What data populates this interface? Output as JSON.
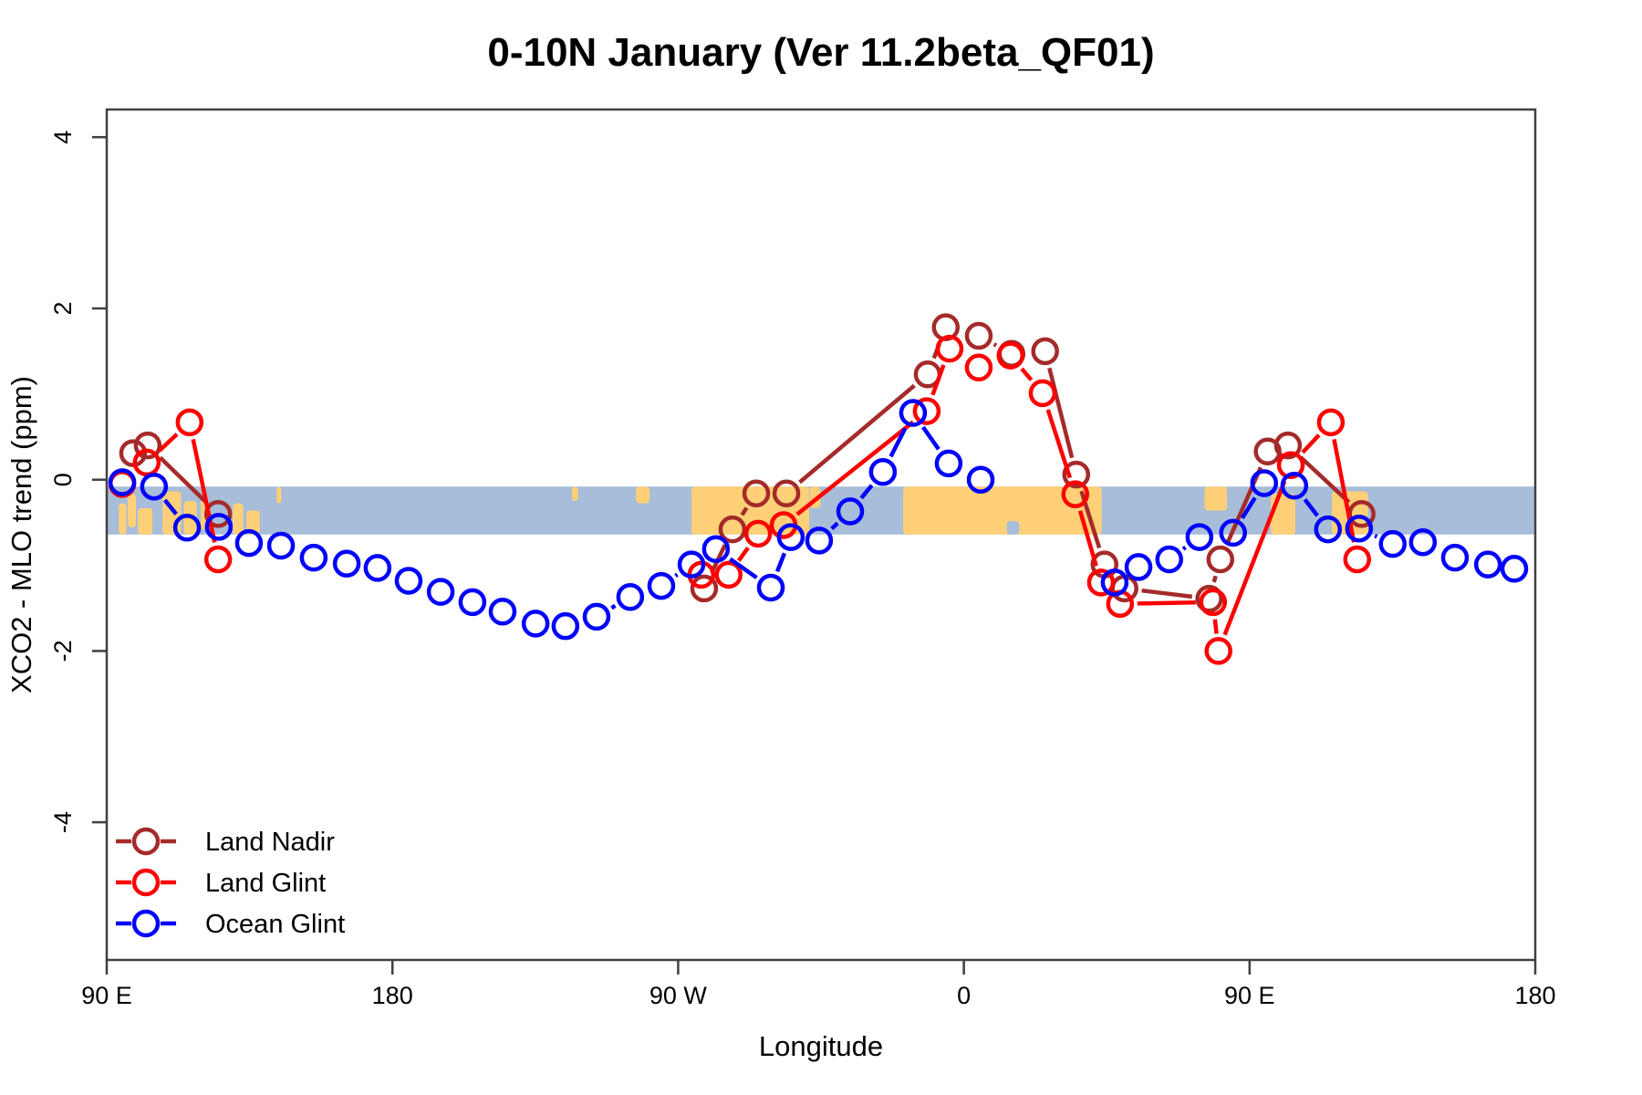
{
  "chart_data": {
    "type": "line",
    "title": "0-10N January (Ver 11.2beta_QF01)",
    "xlabel": "Longitude",
    "ylabel": "XCO2 - MLO trend (ppm)",
    "x_axis": {
      "domain": [
        90,
        540
      ],
      "ticks": [
        90,
        180,
        270,
        360,
        450,
        540
      ],
      "tick_labels": [
        "90 E",
        "180",
        "90 W",
        "0",
        "90 E",
        "180"
      ],
      "note": "longitude axis wraps: 90E eastward around the globe to 180 again"
    },
    "y_axis": {
      "ticks": [
        4,
        2,
        0,
        -2,
        -4
      ],
      "tick_labels": [
        "4",
        "2",
        "0",
        "-2",
        "-4"
      ],
      "ylim": [
        -5.6,
        4.3
      ],
      "grid": false
    },
    "legend": {
      "position": "bottom-left-inside",
      "entries": [
        "Land Nadir",
        "Land Glint",
        "Ocean Glint"
      ]
    },
    "map_band": {
      "description": "0-10N latitude world-map strip drawn behind data",
      "value_top": -0.08,
      "value_bottom": -0.64,
      "ocean_color": "#A7BDD9",
      "land_color": "#FFD077",
      "land_patches": [
        {
          "l0": 93.8,
          "l1": 96.2,
          "t0": 0.35,
          "t1": 1
        },
        {
          "l0": 96.6,
          "l1": 99.2,
          "t0": 0.15,
          "t1": 0.85
        },
        {
          "l0": 99.8,
          "l1": 104.4,
          "t0": 0.45,
          "t1": 1
        },
        {
          "l0": 107.6,
          "l1": 113.4,
          "t0": 0.1,
          "t1": 1
        },
        {
          "l0": 114.3,
          "l1": 118.3,
          "t0": 0.3,
          "t1": 1
        },
        {
          "l0": 119.6,
          "l1": 121.4,
          "t0": 0.25,
          "t1": 0.9
        },
        {
          "l0": 129.7,
          "l1": 133.0,
          "t0": 0.35,
          "t1": 1
        },
        {
          "l0": 134.0,
          "l1": 138.2,
          "t0": 0.5,
          "t1": 1
        },
        {
          "l0": 143.5,
          "l1": 145.0,
          "t0": 0.0,
          "t1": 0.35
        },
        {
          "l0": 236.5,
          "l1": 238.5,
          "t0": 0.0,
          "t1": 0.3
        },
        {
          "l0": 256.7,
          "l1": 261.0,
          "t0": 0.0,
          "t1": 0.35
        },
        {
          "l0": 274.2,
          "l1": 311.3,
          "t0": 0.0,
          "t1": 1
        },
        {
          "l0": 311.5,
          "l1": 314.8,
          "t0": 0.0,
          "t1": 0.45
        },
        {
          "l0": 340.9,
          "l1": 403.4,
          "t0": 0.0,
          "t1": 1
        },
        {
          "l0": 435.8,
          "l1": 442.9,
          "t0": 0.0,
          "t1": 0.5
        },
        {
          "l0": 456.7,
          "l1": 464.4,
          "t0": 0.15,
          "t1": 1
        },
        {
          "l0": 475.9,
          "l1": 487.3,
          "t0": 0.1,
          "t1": 1
        }
      ],
      "ocean_notches": [
        {
          "l0": 373.5,
          "l1": 377.5,
          "t0": 0.72,
          "t1": 1
        }
      ]
    },
    "series": [
      {
        "name": "Land Nadir",
        "color": "#A52A2A",
        "segments": [
          [
            [
              98.3,
              0.31
            ],
            [
              102.9,
              0.4
            ],
            [
              125.1,
              -0.4
            ]
          ],
          [
            [
              278.2,
              -1.27
            ],
            [
              287.1,
              -0.58
            ],
            [
              294.6,
              -0.16
            ],
            [
              304.1,
              -0.16
            ],
            [
              348.6,
              1.23
            ],
            [
              354.3,
              1.78
            ],
            [
              364.7,
              1.68
            ],
            [
              375.0,
              1.47
            ],
            [
              385.6,
              1.5
            ],
            [
              395.4,
              0.06
            ],
            [
              404.3,
              -0.99
            ],
            [
              410.6,
              -1.27
            ],
            [
              437.3,
              -1.39
            ],
            [
              440.8,
              -0.93
            ],
            [
              455.7,
              0.33
            ],
            [
              462.1,
              0.4
            ],
            [
              485.3,
              -0.4
            ]
          ]
        ]
      },
      {
        "name": "Land Glint",
        "color": "#FF0000",
        "segments": [
          [
            [
              94.9,
              -0.05
            ],
            [
              102.6,
              0.2
            ],
            [
              116.1,
              0.67
            ],
            [
              125.1,
              -0.93
            ]
          ],
          [
            [
              277.3,
              -1.11
            ],
            [
              285.9,
              -1.11
            ],
            [
              295.2,
              -0.63
            ],
            [
              303.2,
              -0.53
            ],
            [
              348.3,
              0.8
            ],
            [
              355.5,
              1.53
            ],
            [
              364.7,
              1.31
            ],
            [
              374.7,
              1.45
            ],
            [
              384.8,
              1.01
            ],
            [
              395.1,
              -0.17
            ],
            [
              403.2,
              -1.2
            ],
            [
              409.2,
              -1.45
            ],
            [
              438.5,
              -1.43
            ],
            [
              440.2,
              -2.0
            ],
            [
              463.0,
              0.17
            ],
            [
              475.6,
              0.67
            ],
            [
              483.9,
              -0.93
            ]
          ]
        ]
      },
      {
        "name": "Ocean Glint",
        "color": "#0000FF",
        "segments": [
          [
            [
              94.9,
              -0.03
            ],
            [
              104.9,
              -0.08
            ],
            [
              115.3,
              -0.56
            ],
            [
              125.3,
              -0.55
            ],
            [
              134.8,
              -0.74
            ],
            [
              144.9,
              -0.77
            ],
            [
              155.2,
              -0.91
            ],
            [
              165.6,
              -0.98
            ],
            [
              175.3,
              -1.03
            ],
            [
              185.1,
              -1.18
            ],
            [
              195.2,
              -1.31
            ],
            [
              205.2,
              -1.43
            ],
            [
              214.7,
              -1.54
            ],
            [
              225.1,
              -1.68
            ],
            [
              234.5,
              -1.71
            ],
            [
              244.3,
              -1.6
            ],
            [
              254.9,
              -1.37
            ],
            [
              264.7,
              -1.24
            ],
            [
              274.2,
              -0.99
            ],
            [
              281.9,
              -0.81
            ],
            [
              299.2,
              -1.26
            ],
            [
              305.5,
              -0.67
            ],
            [
              314.4,
              -0.71
            ],
            [
              324.2,
              -0.37
            ],
            [
              334.5,
              0.09
            ],
            [
              344.0,
              0.78
            ],
            [
              355.2,
              0.19
            ],
            [
              365.3,
              0.0
            ]
          ],
          [
            [
              407.5,
              -1.2
            ],
            [
              415.0,
              -1.02
            ],
            [
              424.7,
              -0.93
            ],
            [
              434.2,
              -0.67
            ],
            [
              444.8,
              -0.62
            ],
            [
              454.6,
              -0.04
            ],
            [
              464.1,
              -0.07
            ],
            [
              474.7,
              -0.58
            ],
            [
              484.5,
              -0.57
            ],
            [
              495.1,
              -0.75
            ],
            [
              504.6,
              -0.73
            ],
            [
              514.7,
              -0.91
            ],
            [
              525.1,
              -0.99
            ],
            [
              533.4,
              -1.04
            ]
          ]
        ]
      }
    ]
  }
}
